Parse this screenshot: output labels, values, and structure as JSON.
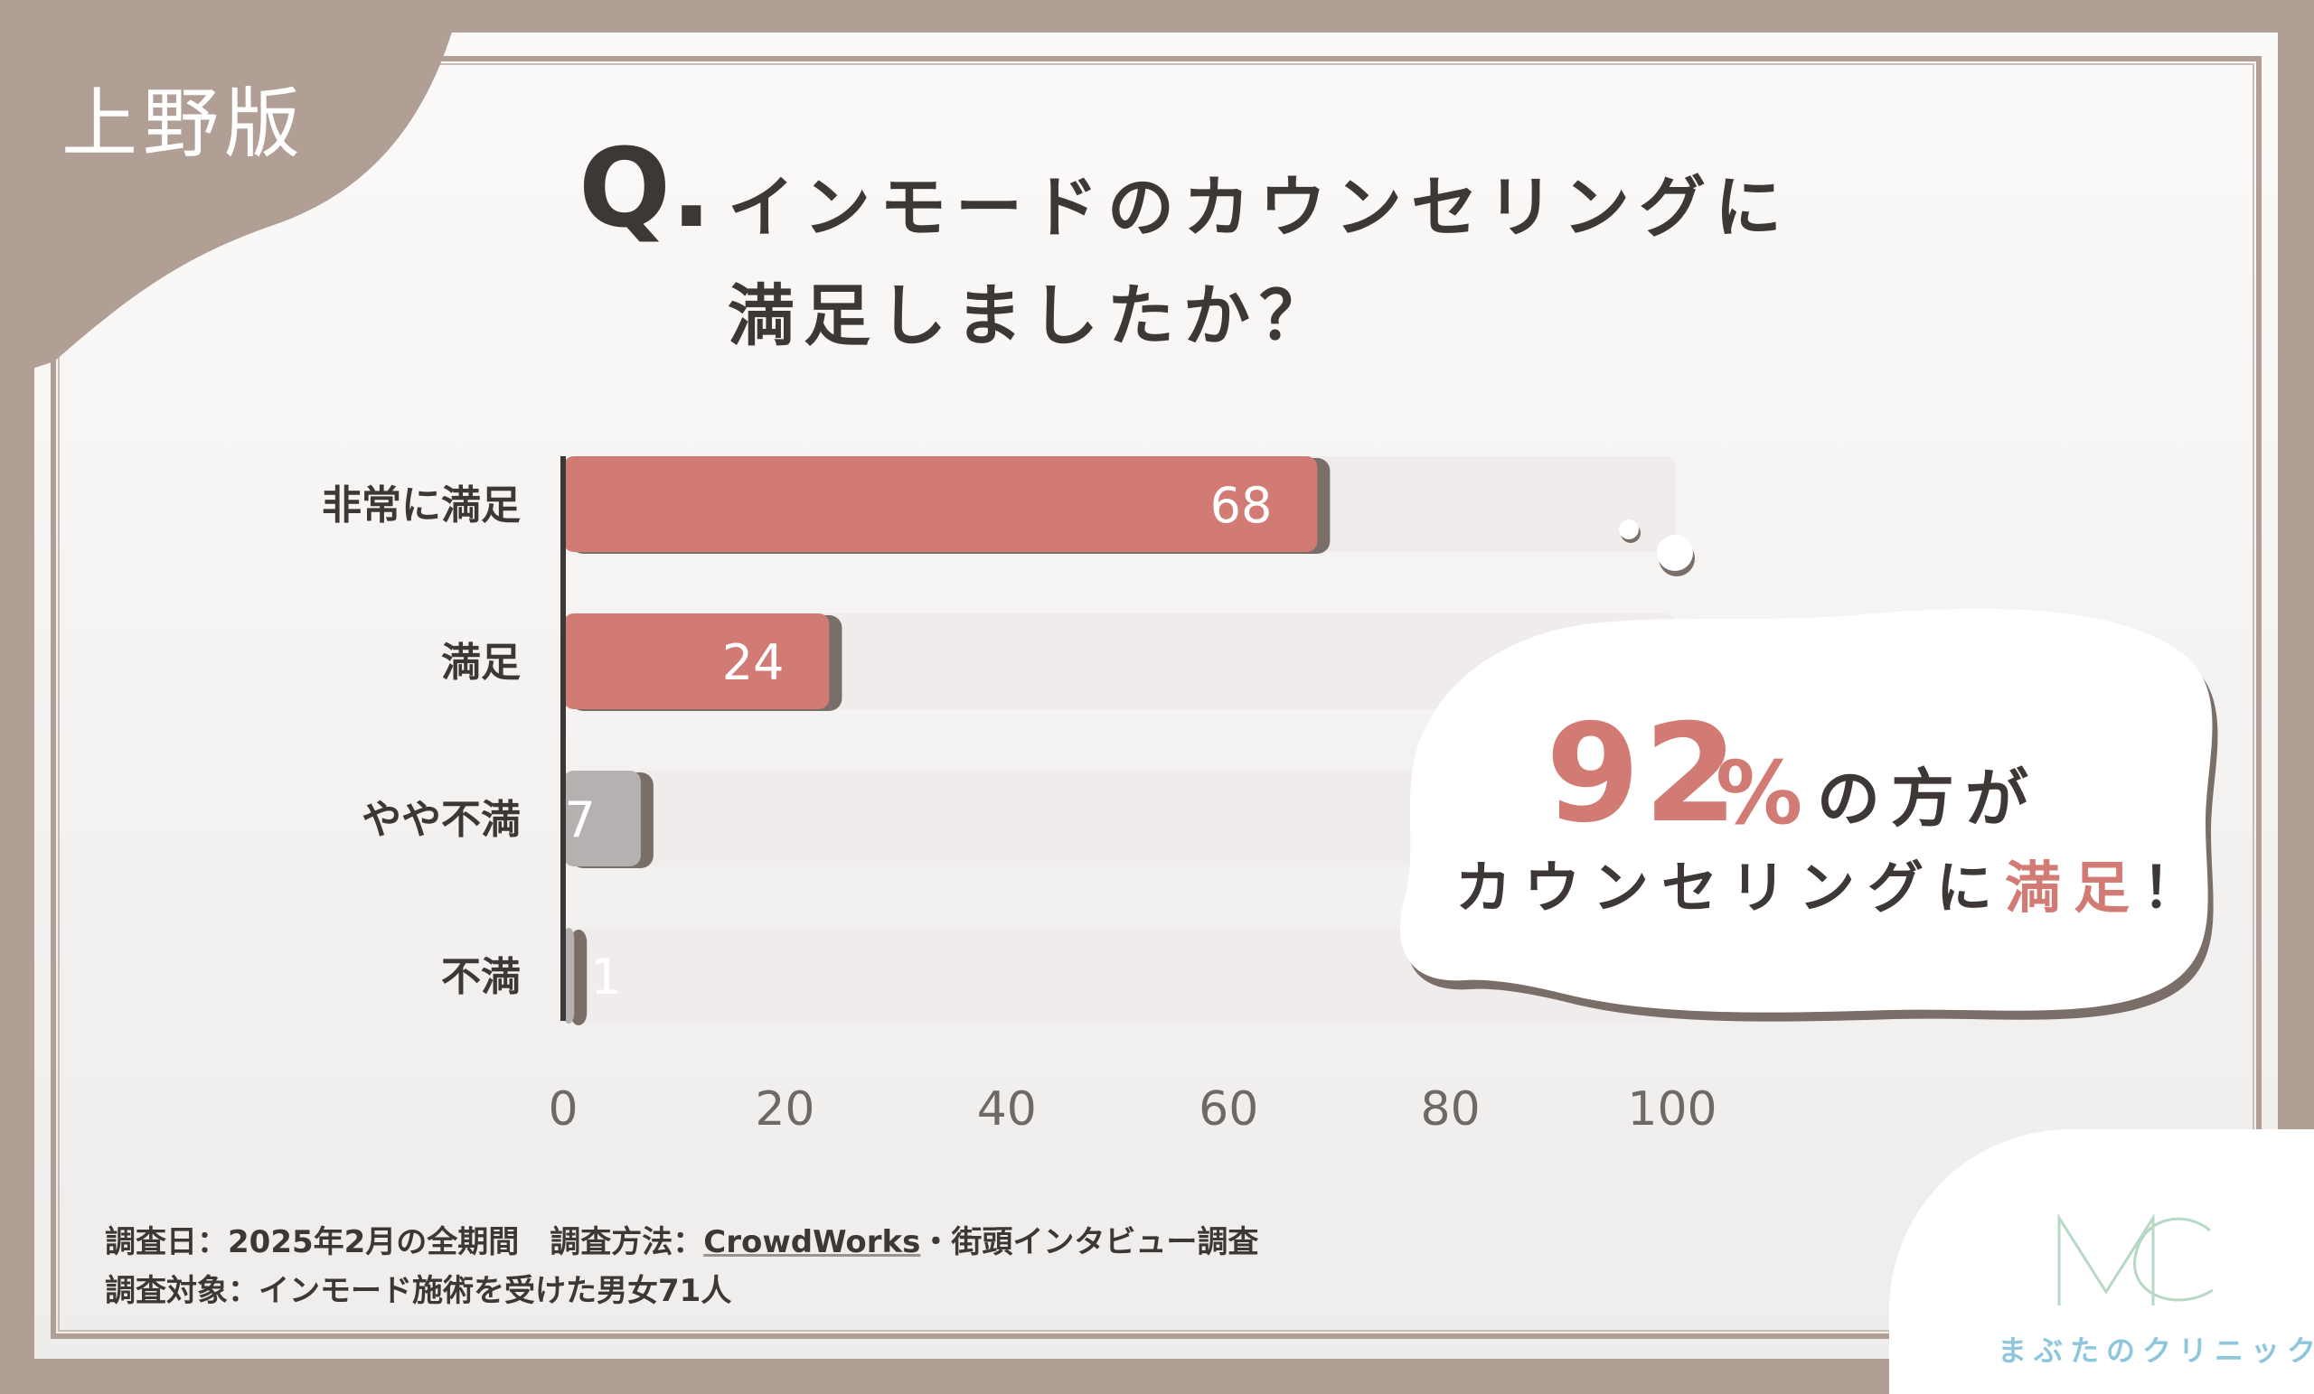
{
  "badge": {
    "label": "上野版"
  },
  "question": {
    "mark": "Q.",
    "line1": "インモードのカウンセリングに",
    "line2": "満足しましたか？"
  },
  "chart_data": {
    "type": "bar",
    "orientation": "horizontal",
    "categories": [
      "非常に満足",
      "満足",
      "やや不満",
      "不満"
    ],
    "values": [
      68,
      24,
      7,
      1
    ],
    "xlim": [
      0,
      100
    ],
    "xticks": [
      "0",
      "20",
      "40",
      "60",
      "80",
      "100"
    ],
    "grid": false,
    "colors": {
      "satisfied": "#d17b74",
      "unsatisfied": "#b5b1b0",
      "track": "#efeceb"
    }
  },
  "callout": {
    "percent": "92",
    "percent_sign": "%",
    "line1_rest": "の方が",
    "line2_prefix": "カウンセリングに",
    "line2_accent": "満足",
    "line2_suffix": "！"
  },
  "footer": {
    "date": "調査日：2025年2月の全期間",
    "method_label": "調査方法：",
    "method_value": "CrowdWorks",
    "method_rest": "・街頭インタビュー調査",
    "target": "調査対象：インモード施術を受けた男女71人"
  },
  "logo": {
    "mark": "MC",
    "text": "まぶたのクリニック"
  }
}
